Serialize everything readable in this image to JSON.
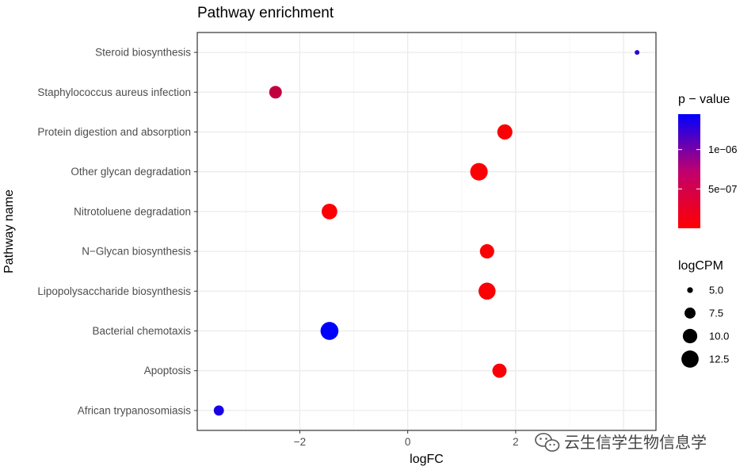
{
  "chart_data": {
    "type": "scatter",
    "title": "Pathway enrichment",
    "xlabel": "logFC",
    "ylabel": "Pathway name",
    "xlim": [
      -3.9,
      4.6
    ],
    "x_ticks": [
      -2,
      0,
      2
    ],
    "x_tick_labels": [
      "−2",
      "0",
      "2"
    ],
    "grid": true,
    "categories": [
      "African trypanosomiasis",
      "Apoptosis",
      "Bacterial chemotaxis",
      "Lipopolysaccharide biosynthesis",
      "N−Glycan biosynthesis",
      "Nitrotoluene degradation",
      "Other glycan degradation",
      "Protein digestion and absorption",
      "Staphylococcus aureus infection",
      "Steroid biosynthesis"
    ],
    "points": [
      {
        "category": "African trypanosomiasis",
        "logFC": -3.5,
        "logCPM": 7.0,
        "p_value": 1.3e-06
      },
      {
        "category": "Apoptosis",
        "logFC": 1.7,
        "logCPM": 9.8,
        "p_value": 2e-08
      },
      {
        "category": "Bacterial chemotaxis",
        "logFC": -1.45,
        "logCPM": 13.2,
        "p_value": 1.45e-06
      },
      {
        "category": "Lipopolysaccharide biosynthesis",
        "logFC": 1.47,
        "logCPM": 12.3,
        "p_value": 2e-08
      },
      {
        "category": "N−Glycan biosynthesis",
        "logFC": 1.47,
        "logCPM": 9.9,
        "p_value": 2e-08
      },
      {
        "category": "Nitrotoluene degradation",
        "logFC": -1.45,
        "logCPM": 11.0,
        "p_value": 2e-08
      },
      {
        "category": "Other glycan degradation",
        "logFC": 1.32,
        "logCPM": 12.8,
        "p_value": 2e-08
      },
      {
        "category": "Protein digestion and absorption",
        "logFC": 1.8,
        "logCPM": 10.6,
        "p_value": 2e-08
      },
      {
        "category": "Staphylococcus aureus infection",
        "logFC": -2.45,
        "logCPM": 8.6,
        "p_value": 3.5e-07
      },
      {
        "category": "Steroid biosynthesis",
        "logFC": 4.25,
        "logCPM": 4.7,
        "p_value": 1.2e-06
      }
    ],
    "color_legend": {
      "title": "p − value",
      "range": [
        0,
        1.45e-06
      ],
      "low_color": "#ff0000",
      "high_color": "#0000ff",
      "ticks": [
        {
          "value": 5e-07,
          "label": "5e−07"
        },
        {
          "value": 1e-06,
          "label": "1e−06"
        }
      ]
    },
    "size_legend": {
      "title": "logCPM",
      "range": [
        4.5,
        13.5
      ],
      "entries": [
        {
          "value": 5.0,
          "label": "5.0"
        },
        {
          "value": 7.5,
          "label": "7.5"
        },
        {
          "value": 10.0,
          "label": "10.0"
        },
        {
          "value": 12.5,
          "label": "12.5"
        }
      ]
    }
  },
  "watermark": {
    "icon": "wechat-icon",
    "text": "云生信学生物信息学"
  }
}
